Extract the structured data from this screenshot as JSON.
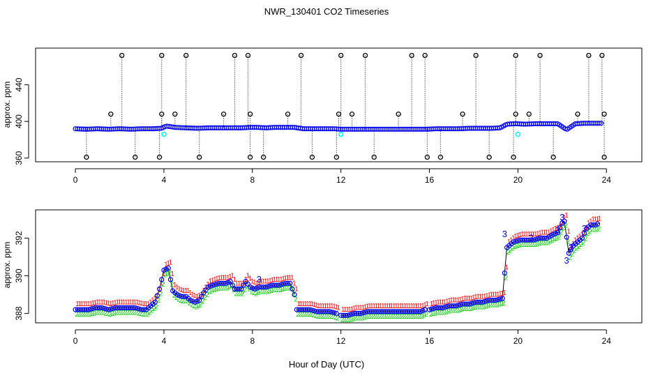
{
  "figure": {
    "title": "NWR_130401  CO2 Timeseries",
    "xlabel": "Hour of Day (UTC)"
  },
  "colors": {
    "frame": "#000000",
    "series_main": "#0000ff",
    "series_alt": "#00ffff",
    "flag_1": "#ff0000",
    "flag_2": "#00cc00",
    "flag_3": "#0000ff",
    "line": "#000000"
  },
  "chart_data": [
    {
      "type": "scatter",
      "title": "NWR_130401  CO2 Timeseries",
      "xlabel": "",
      "ylabel": "approx. ppm",
      "xlim": [
        -1.8,
        25.6
      ],
      "ylim": [
        356,
        480
      ],
      "xticks": [
        0,
        4,
        8,
        12,
        16,
        20,
        24
      ],
      "yticks": [
        360,
        400,
        440
      ],
      "baseline": [
        [
          0,
          392
        ],
        [
          0.5,
          391.5
        ],
        [
          1,
          392
        ],
        [
          1.5,
          391.5
        ],
        [
          2,
          392
        ],
        [
          2.5,
          391.5
        ],
        [
          3,
          392
        ],
        [
          3.5,
          392
        ],
        [
          3.9,
          392.5
        ],
        [
          4.1,
          395
        ],
        [
          4.5,
          393.5
        ],
        [
          5,
          393
        ],
        [
          5.5,
          392.5
        ],
        [
          6,
          393
        ],
        [
          6.5,
          393
        ],
        [
          7,
          393
        ],
        [
          7.5,
          393
        ],
        [
          7.9,
          393.5
        ],
        [
          8.2,
          393.5
        ],
        [
          8.6,
          393
        ],
        [
          9,
          393.5
        ],
        [
          9.5,
          393.5
        ],
        [
          9.9,
          393.5
        ],
        [
          10.3,
          392
        ],
        [
          10.7,
          392
        ],
        [
          11.2,
          392
        ],
        [
          11.7,
          392
        ],
        [
          12,
          391.5
        ],
        [
          12.5,
          391.5
        ],
        [
          13,
          391.5
        ],
        [
          13.5,
          391.5
        ],
        [
          14,
          391.5
        ],
        [
          14.5,
          391.5
        ],
        [
          15,
          391.5
        ],
        [
          15.5,
          391.5
        ],
        [
          15.9,
          391.5
        ],
        [
          16.3,
          392
        ],
        [
          16.8,
          392
        ],
        [
          17.3,
          392
        ],
        [
          17.8,
          392.5
        ],
        [
          18.3,
          392.5
        ],
        [
          18.8,
          392.5
        ],
        [
          19.2,
          393
        ],
        [
          19.5,
          397
        ],
        [
          19.9,
          397.5
        ],
        [
          20.3,
          397
        ],
        [
          20.8,
          397.5
        ],
        [
          21.3,
          397.5
        ],
        [
          21.8,
          397.5
        ],
        [
          22.2,
          391
        ],
        [
          22.6,
          397.5
        ],
        [
          23,
          398
        ],
        [
          23.4,
          398
        ],
        [
          23.8,
          398
        ]
      ],
      "spikes_high": [
        2.1,
        3.9,
        5.0,
        7.2,
        7.8,
        10.2,
        12.0,
        13.1,
        15.2,
        15.8,
        18.1,
        19.9,
        21.0,
        23.2,
        23.8
      ],
      "spikes_high_value": 472,
      "spikes_mid": [
        1.6,
        3.9,
        4.5,
        6.7,
        7.9,
        9.6,
        11.9,
        12.5,
        14.6,
        17.5,
        19.9,
        20.5,
        22.7,
        23.9
      ],
      "spikes_mid_value": 408,
      "spikes_low": [
        0.5,
        2.7,
        3.8,
        5.6,
        7.9,
        8.5,
        10.7,
        11.8,
        13.5,
        15.9,
        16.5,
        18.7,
        19.8,
        21.6,
        23.9
      ],
      "spikes_low_value": 361,
      "alt_points": [
        {
          "x": 4.0,
          "y": 386
        },
        {
          "x": 12.0,
          "y": 386
        },
        {
          "x": 20.0,
          "y": 386
        }
      ]
    },
    {
      "type": "line",
      "title": "",
      "xlabel": "Hour of Day (UTC)",
      "ylabel": "approx. ppm",
      "xlim": [
        -1.8,
        25.6
      ],
      "ylim": [
        387.5,
        393.5
      ],
      "xticks": [
        0,
        4,
        8,
        12,
        16,
        20,
        24
      ],
      "yticks": [
        388,
        390,
        392
      ],
      "gaps_after_hours": [
        9.9,
        11.85,
        15.85
      ],
      "series": [
        {
          "name": "main",
          "points": [
            [
              0,
              388.2
            ],
            [
              0.3,
              388.2
            ],
            [
              0.6,
              388.2
            ],
            [
              0.9,
              388.3
            ],
            [
              1.2,
              388.3
            ],
            [
              1.5,
              388.2
            ],
            [
              1.8,
              388.3
            ],
            [
              2.1,
              388.3
            ],
            [
              2.4,
              388.3
            ],
            [
              2.7,
              388.3
            ],
            [
              3.0,
              388.2
            ],
            [
              3.2,
              388.2
            ],
            [
              3.4,
              388.4
            ],
            [
              3.6,
              388.6
            ],
            [
              3.8,
              389.3
            ],
            [
              4.0,
              390.3
            ],
            [
              4.2,
              390.4
            ],
            [
              4.4,
              389.2
            ],
            [
              4.6,
              389.0
            ],
            [
              4.8,
              388.9
            ],
            [
              5.0,
              388.9
            ],
            [
              5.2,
              388.7
            ],
            [
              5.4,
              388.6
            ],
            [
              5.6,
              388.7
            ],
            [
              5.8,
              389.1
            ],
            [
              6.0,
              389.4
            ],
            [
              6.2,
              389.5
            ],
            [
              6.5,
              389.6
            ],
            [
              6.8,
              389.6
            ],
            [
              7.0,
              389.7
            ],
            [
              7.2,
              389.3
            ],
            [
              7.5,
              389.3
            ],
            [
              7.7,
              389.7
            ],
            [
              7.9,
              389.4
            ],
            [
              8.1,
              389.3
            ],
            [
              8.3,
              389.4
            ],
            [
              8.6,
              389.4
            ],
            [
              8.9,
              389.5
            ],
            [
              9.2,
              389.5
            ],
            [
              9.5,
              389.6
            ],
            [
              9.7,
              389.6
            ],
            [
              9.9,
              389.0
            ],
            [
              10.0,
              388.2
            ],
            [
              10.3,
              388.2
            ],
            [
              10.6,
              388.2
            ],
            [
              10.9,
              388.1
            ],
            [
              11.2,
              388.1
            ],
            [
              11.5,
              388.1
            ],
            [
              11.8,
              388.0
            ],
            [
              12.0,
              387.9
            ],
            [
              12.3,
              387.9
            ],
            [
              12.6,
              388.0
            ],
            [
              12.9,
              388.0
            ],
            [
              13.2,
              388.1
            ],
            [
              13.5,
              388.1
            ],
            [
              13.8,
              388.1
            ],
            [
              14.1,
              388.1
            ],
            [
              14.4,
              388.1
            ],
            [
              14.7,
              388.1
            ],
            [
              15.0,
              388.1
            ],
            [
              15.3,
              388.1
            ],
            [
              15.6,
              388.1
            ],
            [
              15.8,
              388.2
            ],
            [
              16.0,
              388.2
            ],
            [
              16.3,
              388.3
            ],
            [
              16.6,
              388.3
            ],
            [
              16.9,
              388.4
            ],
            [
              17.2,
              388.4
            ],
            [
              17.5,
              388.5
            ],
            [
              17.8,
              388.5
            ],
            [
              18.1,
              388.6
            ],
            [
              18.4,
              388.6
            ],
            [
              18.7,
              388.7
            ],
            [
              19.0,
              388.7
            ],
            [
              19.3,
              388.8
            ],
            [
              19.5,
              391.5
            ],
            [
              19.8,
              391.8
            ],
            [
              20.1,
              391.9
            ],
            [
              20.4,
              391.9
            ],
            [
              20.7,
              391.9
            ],
            [
              21.0,
              392.0
            ],
            [
              21.3,
              392.0
            ],
            [
              21.6,
              392.2
            ],
            [
              21.8,
              392.3
            ],
            [
              22.0,
              392.8
            ],
            [
              22.1,
              392.9
            ],
            [
              22.3,
              391.2
            ],
            [
              22.5,
              391.6
            ],
            [
              22.7,
              391.8
            ],
            [
              22.9,
              392.0
            ],
            [
              23.1,
              392.5
            ],
            [
              23.3,
              392.7
            ],
            [
              23.5,
              392.7
            ],
            [
              23.7,
              392.8
            ]
          ]
        }
      ],
      "flag_labels": [
        "1",
        "2",
        "3"
      ],
      "flag_3_markers": [
        {
          "x": 19.4,
          "y": 392.2
        },
        {
          "x": 20.6,
          "y": 392.0
        },
        {
          "x": 21.8,
          "y": 392.4
        },
        {
          "x": 22.0,
          "y": 393.1
        },
        {
          "x": 22.2,
          "y": 390.8
        },
        {
          "x": 22.4,
          "y": 391.5
        },
        {
          "x": 23.0,
          "y": 392.5
        },
        {
          "x": 8.3,
          "y": 389.8
        }
      ]
    }
  ]
}
